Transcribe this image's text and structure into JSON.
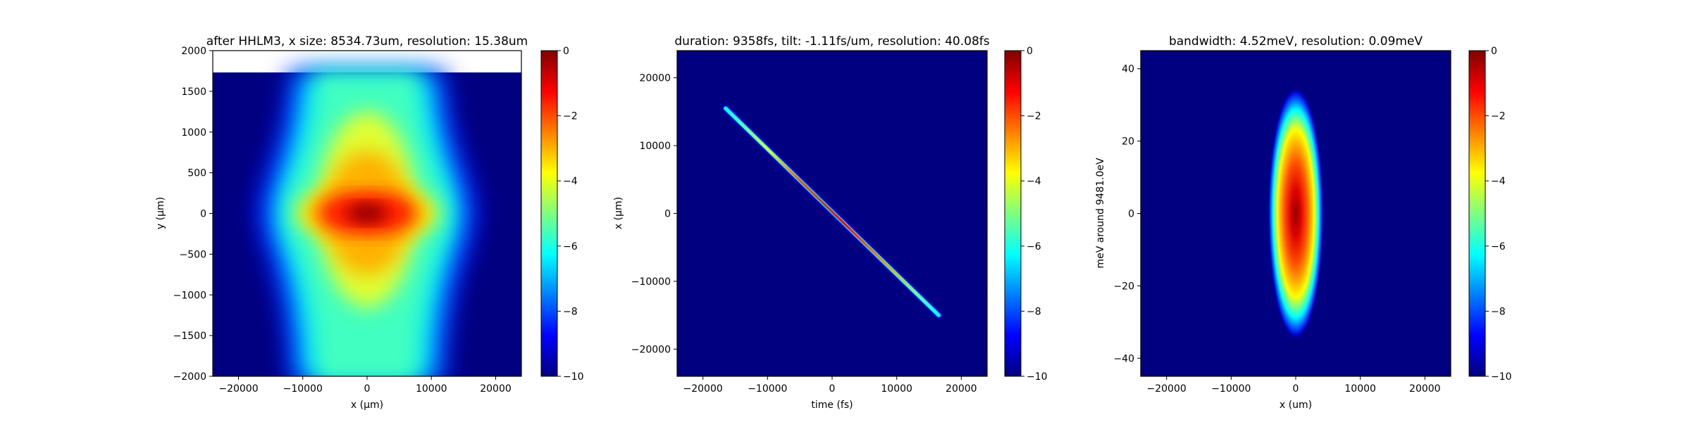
{
  "chart_data": [
    {
      "type": "heatmap",
      "title": "after HHLM3, x size: 8534.73um, resolution: 15.38um",
      "xlabel": "x (μm)",
      "ylabel": "y (μm)",
      "xlim": [
        -24000,
        24000
      ],
      "ylim": [
        -2000,
        2000
      ],
      "xticks": [
        -20000,
        -10000,
        0,
        10000,
        20000
      ],
      "xtick_labels": [
        "−20000",
        "−10000",
        "0",
        "10000",
        "20000"
      ],
      "yticks": [
        -2000,
        -1500,
        -1000,
        -500,
        0,
        500,
        1000,
        1500,
        2000
      ],
      "ytick_labels": [
        "−2000",
        "−1500",
        "−1000",
        "−500",
        "0",
        "500",
        "1000",
        "1500",
        "2000"
      ],
      "data_extent_y": [
        -2000,
        1730
      ],
      "colormap": "jet",
      "colorbar": {
        "range": [
          -10,
          0
        ],
        "ticks": [
          0,
          -2,
          -4,
          -6,
          -8,
          -10
        ],
        "tick_labels": [
          "0",
          "−2",
          "−4",
          "−6",
          "−8",
          "−10"
        ]
      }
    },
    {
      "type": "heatmap",
      "title": "duration: 9358fs, tilt: -1.11fs/um, resolution: 40.08fs",
      "xlabel": "time (fs)",
      "ylabel": "x (μm)",
      "xlim": [
        -24000,
        24000
      ],
      "ylim": [
        -24000,
        24000
      ],
      "xticks": [
        -20000,
        -10000,
        0,
        10000,
        20000
      ],
      "xtick_labels": [
        "−20000",
        "−10000",
        "0",
        "10000",
        "20000"
      ],
      "yticks": [
        -20000,
        -10000,
        0,
        10000,
        20000
      ],
      "ytick_labels": [
        "−20000",
        "−10000",
        "0",
        "10000",
        "20000"
      ],
      "streak": {
        "from": [
          -16500,
          15500
        ],
        "to": [
          16500,
          -15000
        ]
      },
      "colormap": "jet",
      "colorbar": {
        "range": [
          -10,
          0
        ],
        "ticks": [
          0,
          -2,
          -4,
          -6,
          -8,
          -10
        ],
        "tick_labels": [
          "0",
          "−2",
          "−4",
          "−6",
          "−8",
          "−10"
        ]
      }
    },
    {
      "type": "heatmap",
      "title": "bandwidth: 4.52meV, resolution: 0.09meV",
      "xlabel": "x (um)",
      "ylabel": "meV around 9481.0eV",
      "xlim": [
        -24000,
        24000
      ],
      "ylim": [
        -45,
        45
      ],
      "xticks": [
        -20000,
        -10000,
        0,
        10000,
        20000
      ],
      "xtick_labels": [
        "−20000",
        "−10000",
        "0",
        "10000",
        "20000"
      ],
      "yticks": [
        -40,
        -20,
        0,
        20,
        40
      ],
      "ytick_labels": [
        "−40",
        "−20",
        "0",
        "20",
        "40"
      ],
      "blob": {
        "center": [
          0,
          0
        ],
        "half_width_x": 4000,
        "half_height_y": 33
      },
      "colormap": "jet",
      "colorbar": {
        "range": [
          -10,
          0
        ],
        "ticks": [
          0,
          -2,
          -4,
          -6,
          -8,
          -10
        ],
        "tick_labels": [
          "0",
          "−2",
          "−4",
          "−6",
          "−8",
          "−10"
        ]
      }
    }
  ]
}
